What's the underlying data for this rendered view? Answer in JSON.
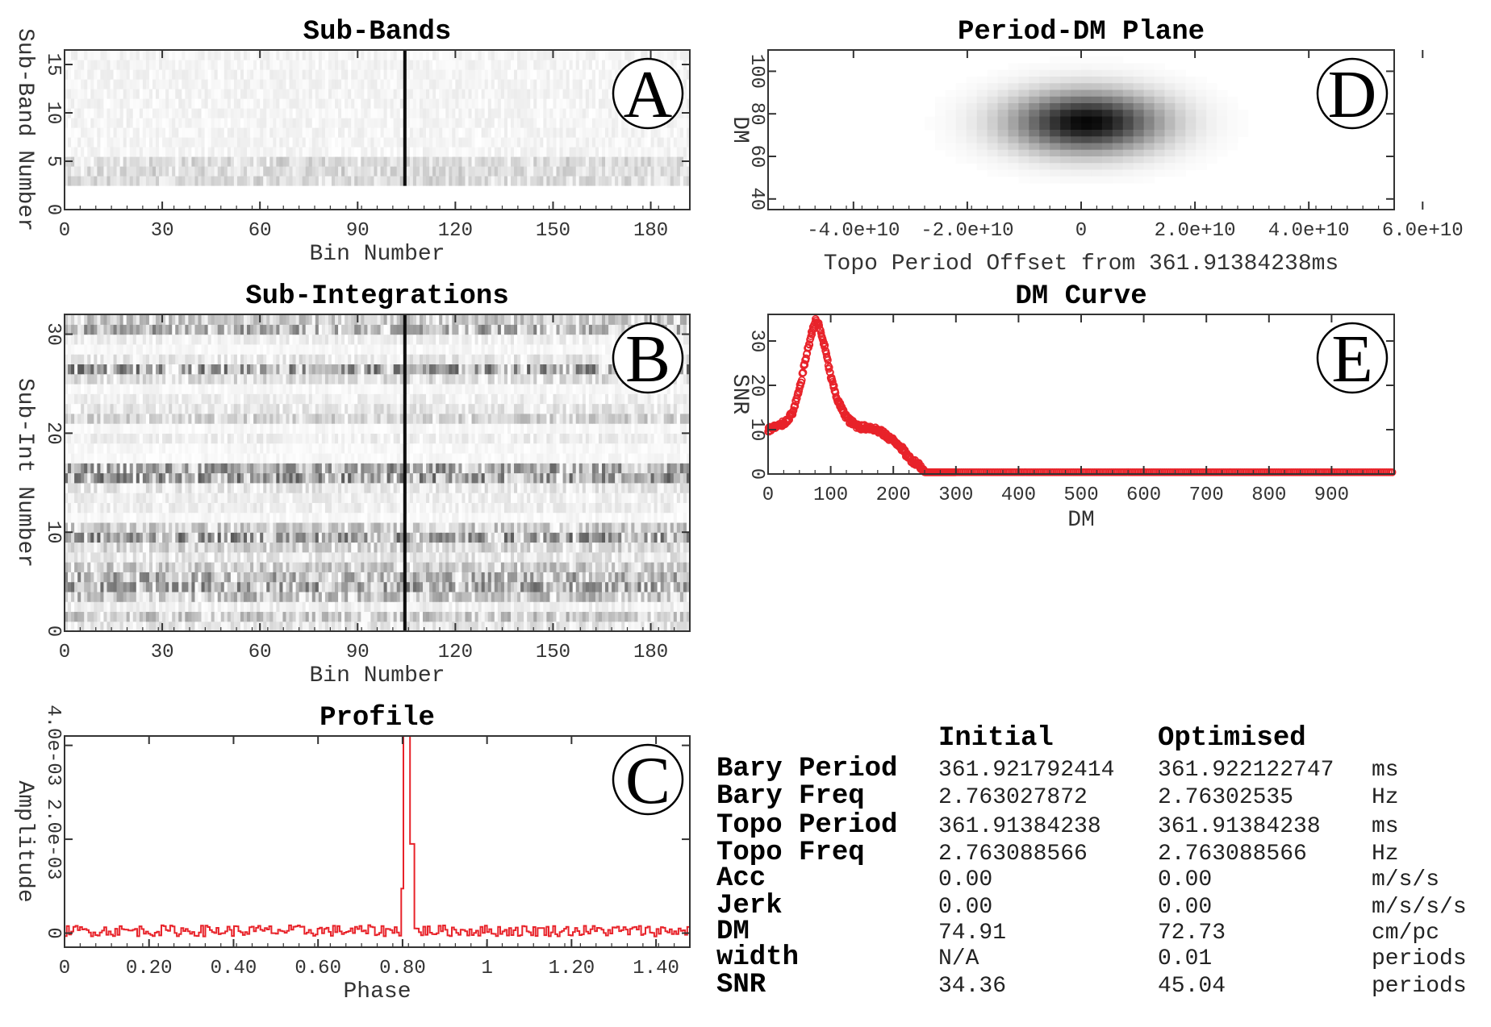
{
  "chart_data": [
    {
      "id": "subbands",
      "type": "heatmap",
      "title": "Sub-Bands",
      "badge": "A",
      "xlabel": "Bin Number",
      "ylabel": "Sub-Band Number",
      "xlim": [
        0,
        192
      ],
      "ylim": [
        0,
        16.5
      ],
      "xticks": [
        "0",
        "30",
        "60",
        "90",
        "120",
        "150",
        "180"
      ],
      "yticks": [
        "0",
        "5",
        "10",
        "15"
      ],
      "rows": 14,
      "row_start": 2.5,
      "cols": 192,
      "pulse_bin": 104,
      "noise_level": 0.08,
      "strong_rows": [
        0,
        1,
        2
      ]
    },
    {
      "id": "subints",
      "type": "heatmap",
      "title": "Sub-Integrations",
      "badge": "B",
      "xlabel": "Bin Number",
      "ylabel": "Sub-Int Number",
      "xlim": [
        0,
        192
      ],
      "ylim": [
        0,
        32
      ],
      "xticks": [
        "0",
        "30",
        "60",
        "90",
        "120",
        "150",
        "180"
      ],
      "yticks": [
        "0",
        "10",
        "20",
        "30"
      ],
      "rows": 32,
      "row_start": 0,
      "cols": 192,
      "pulse_bin": 104,
      "row_intensity": [
        0.15,
        0.3,
        0.1,
        0.35,
        0.5,
        0.45,
        0.3,
        0.15,
        0.25,
        0.55,
        0.3,
        0.05,
        0.1,
        0.1,
        0.15,
        0.55,
        0.5,
        0.05,
        0.05,
        0.1,
        0.05,
        0.25,
        0.15,
        0.1,
        0.05,
        0.2,
        0.55,
        0.15,
        0.05,
        0.1,
        0.45,
        0.3
      ]
    },
    {
      "id": "profile",
      "type": "line",
      "title": "Profile",
      "badge": "C",
      "xlabel": "Phase",
      "ylabel": "Amplitude",
      "xlim": [
        0,
        1.48
      ],
      "ylim": [
        -0.0003,
        0.0042
      ],
      "xticks": [
        "0",
        "0.20",
        "0.40",
        "0.60",
        "0.80",
        "1",
        "1.20",
        "1.40"
      ],
      "yticks": [
        "0",
        "2.0e-03",
        "4.0e-03"
      ],
      "color": "#e8232a",
      "baseline": 5e-05,
      "noise": 0.00012,
      "peaks": [
        {
          "x": 0.797,
          "y": 0.00095
        },
        {
          "x": 0.805,
          "y": 0.0042
        },
        {
          "x": 0.812,
          "y": 0.0042
        },
        {
          "x": 0.82,
          "y": 0.0019
        },
        {
          "x": 0.828,
          "y": 0.0001
        }
      ]
    },
    {
      "id": "pdm",
      "type": "heatmap",
      "title": "Period-DM Plane",
      "badge": "D",
      "xlabel": "Topo Period Offset from 361.91384238ms",
      "ylabel": "DM",
      "xlim": [
        -55000000000.0,
        55000000000.0
      ],
      "ylim": [
        35,
        110
      ],
      "xticks": [
        "-4.0e+10",
        "-2.0e+10",
        "0",
        "2.0e+10",
        "4.0e+10",
        "6.0e+10"
      ],
      "yticks": [
        "40",
        "60",
        "80",
        "100"
      ],
      "peak": {
        "x": 1000000000.0,
        "y": 76
      },
      "width": {
        "x": 13000000000.0,
        "y": 14
      }
    },
    {
      "id": "dmcurve",
      "type": "scatter",
      "title": "DM Curve",
      "badge": "E",
      "xlabel": "DM",
      "ylabel": "SNR",
      "xlim": [
        0,
        1000
      ],
      "ylim": [
        0,
        36
      ],
      "xticks": [
        "0",
        "100",
        "200",
        "300",
        "400",
        "500",
        "600",
        "700",
        "800",
        "900"
      ],
      "yticks": [
        "0",
        "10",
        "20",
        "30"
      ],
      "color": "#e8232a",
      "points": [
        [
          0,
          10
        ],
        [
          10,
          10.5
        ],
        [
          20,
          11
        ],
        [
          30,
          12
        ],
        [
          40,
          14
        ],
        [
          50,
          19
        ],
        [
          60,
          26
        ],
        [
          70,
          32
        ],
        [
          75,
          34.5
        ],
        [
          80,
          34
        ],
        [
          90,
          29
        ],
        [
          100,
          22
        ],
        [
          110,
          17
        ],
        [
          120,
          14
        ],
        [
          130,
          12
        ],
        [
          140,
          11
        ],
        [
          150,
          10.5
        ],
        [
          160,
          10.5
        ],
        [
          170,
          10.2
        ],
        [
          180,
          9.5
        ],
        [
          190,
          8.5
        ],
        [
          200,
          7.5
        ],
        [
          210,
          6.5
        ],
        [
          220,
          4.5
        ],
        [
          230,
          3
        ],
        [
          240,
          2.3
        ],
        [
          250,
          0.4
        ],
        [
          300,
          0.4
        ],
        [
          400,
          0.4
        ],
        [
          500,
          0.4
        ],
        [
          600,
          0.4
        ],
        [
          700,
          0.4
        ],
        [
          800,
          0.4
        ],
        [
          900,
          0.4
        ],
        [
          1000,
          0.4
        ]
      ]
    }
  ],
  "params_table": {
    "headers": [
      "Initial",
      "Optimised"
    ],
    "rows": [
      {
        "label": "Bary Period",
        "initial": "361.921792414",
        "optimised": "361.922122747",
        "unit": "ms"
      },
      {
        "label": "Bary Freq",
        "initial": "2.763027872",
        "optimised": "2.76302535",
        "unit": "Hz"
      },
      {
        "label": "Topo Period",
        "initial": "361.91384238",
        "optimised": "361.91384238",
        "unit": "ms"
      },
      {
        "label": "Topo Freq",
        "initial": "2.763088566",
        "optimised": "2.763088566",
        "unit": "Hz"
      },
      {
        "label": "Acc",
        "initial": "0.00",
        "optimised": "0.00",
        "unit": "m/s/s"
      },
      {
        "label": "Jerk",
        "initial": "0.00",
        "optimised": "0.00",
        "unit": "m/s/s/s"
      },
      {
        "label": "DM",
        "initial": "74.91",
        "optimised": "72.73",
        "unit": "cm/pc"
      },
      {
        "label": "width",
        "initial": "N/A",
        "optimised": "0.01",
        "unit": "periods"
      },
      {
        "label": "SNR",
        "initial": "34.36",
        "optimised": "45.04",
        "unit": "periods"
      }
    ]
  }
}
